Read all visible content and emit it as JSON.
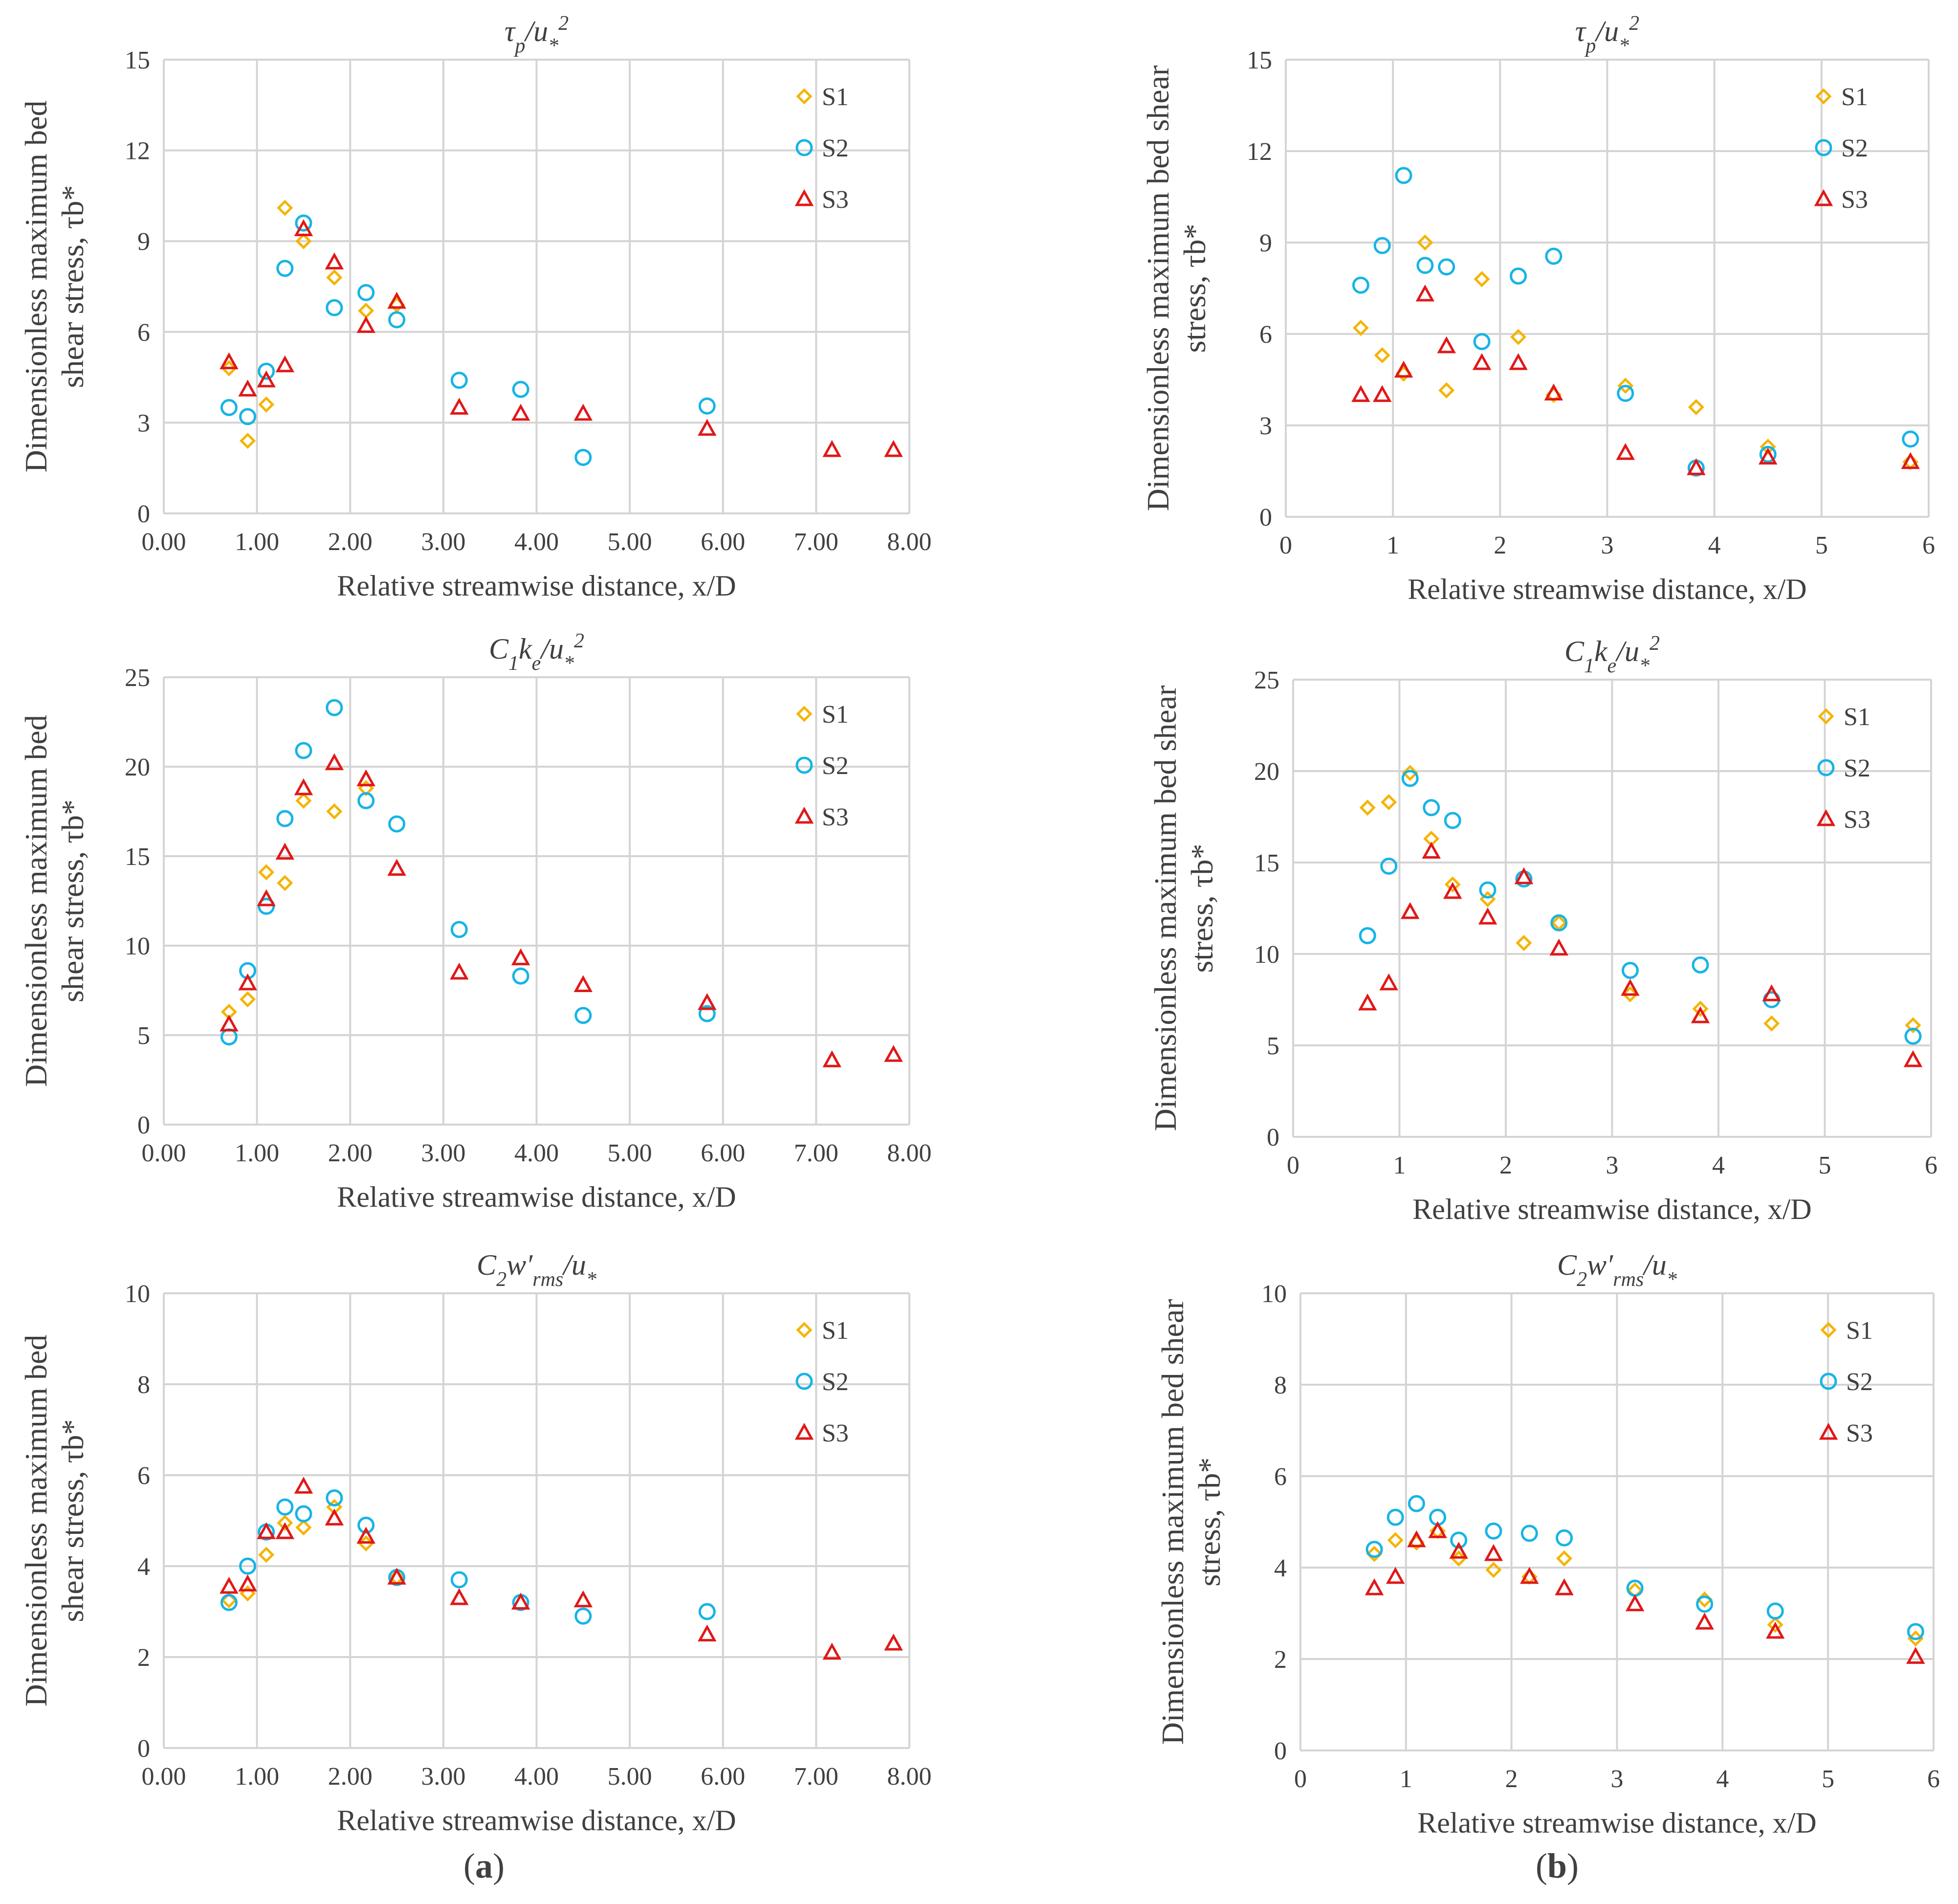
{
  "figure": {
    "panel_labels": [
      {
        "open": "(",
        "letter": "a",
        "close": ")"
      },
      {
        "open": "(",
        "letter": "b",
        "close": ")"
      }
    ],
    "series_names": [
      "S1",
      "S2",
      "S3"
    ],
    "colors": {
      "S1": "#f5b400",
      "S2": "#16b4e6",
      "S3": "#e01818",
      "grid": "#d4d4d4",
      "text": "#404040"
    }
  },
  "chart_data": [
    {
      "type": "scatter",
      "id": "a-top",
      "column": "a",
      "title": "τp/u*²",
      "ylabel_lines": [
        "Dimensionless maximum bed",
        "shear stress, τb*"
      ],
      "xlabel": "Relative streamwise distance, x/D",
      "xlim": [
        0,
        8
      ],
      "ylim": [
        0,
        15
      ],
      "xticks": [
        "0.00",
        "1.00",
        "2.00",
        "3.00",
        "4.00",
        "5.00",
        "6.00",
        "7.00",
        "8.00"
      ],
      "yticks": [
        "0",
        "3",
        "6",
        "9",
        "12",
        "15"
      ],
      "series": [
        {
          "name": "S1",
          "x": [
            0.7,
            0.9,
            1.1,
            1.3,
            1.5,
            1.83,
            2.17,
            2.5
          ],
          "y": [
            4.8,
            2.4,
            3.6,
            10.1,
            9.0,
            7.8,
            6.7,
            6.9
          ]
        },
        {
          "name": "S2",
          "x": [
            0.7,
            0.9,
            1.1,
            1.3,
            1.5,
            1.83,
            2.17,
            2.5,
            3.17,
            3.83,
            4.5,
            5.83
          ],
          "y": [
            3.5,
            3.2,
            4.7,
            8.1,
            9.6,
            6.8,
            7.3,
            6.4,
            4.4,
            4.1,
            1.85,
            3.55
          ]
        },
        {
          "name": "S3",
          "x": [
            0.7,
            0.9,
            1.1,
            1.3,
            1.5,
            1.83,
            2.17,
            2.5,
            3.17,
            3.83,
            4.5,
            5.83,
            7.17,
            7.83
          ],
          "y": [
            5.0,
            4.1,
            4.4,
            4.9,
            9.4,
            8.3,
            6.2,
            7.0,
            3.5,
            3.3,
            3.3,
            2.8,
            2.1,
            2.1
          ]
        }
      ]
    },
    {
      "type": "scatter",
      "id": "b-top",
      "column": "b",
      "title": "τp/u*²",
      "ylabel_lines": [
        "Dimensionless maximum bed shear",
        "stress, τb*"
      ],
      "xlabel": "Relative streamwise distance, x/D",
      "xlim": [
        0,
        6
      ],
      "ylim": [
        0,
        15
      ],
      "xticks": [
        "0",
        "1",
        "2",
        "3",
        "4",
        "5",
        "6"
      ],
      "yticks": [
        "0",
        "3",
        "6",
        "9",
        "12",
        "15"
      ],
      "series": [
        {
          "name": "S1",
          "x": [
            0.7,
            0.9,
            1.1,
            1.3,
            1.5,
            1.83,
            2.17,
            2.5,
            3.17,
            3.83,
            4.5,
            5.83
          ],
          "y": [
            6.2,
            5.3,
            4.7,
            9.0,
            4.15,
            7.8,
            5.9,
            4.0,
            4.3,
            3.6,
            2.3,
            1.8
          ]
        },
        {
          "name": "S2",
          "x": [
            0.7,
            0.9,
            1.1,
            1.3,
            1.5,
            1.83,
            2.17,
            2.5,
            3.17,
            3.83,
            4.5,
            5.83
          ],
          "y": [
            7.6,
            8.9,
            11.2,
            8.25,
            8.2,
            5.75,
            7.9,
            8.55,
            4.05,
            1.6,
            2.05,
            2.55
          ]
        },
        {
          "name": "S3",
          "x": [
            0.7,
            0.9,
            1.1,
            1.3,
            1.5,
            1.83,
            2.17,
            2.5,
            3.17,
            3.83,
            4.5,
            5.83
          ],
          "y": [
            4.0,
            4.0,
            4.8,
            7.3,
            5.6,
            5.05,
            5.05,
            4.05,
            2.1,
            1.6,
            1.95,
            1.8
          ]
        }
      ]
    },
    {
      "type": "scatter",
      "id": "a-mid",
      "column": "a",
      "title": "C1ke/u*²",
      "ylabel_lines": [
        "Dimensionless maximum bed",
        "shear stress, τb*"
      ],
      "xlabel": "Relative streamwise distance, x/D",
      "xlim": [
        0,
        8
      ],
      "ylim": [
        0,
        25
      ],
      "xticks": [
        "0.00",
        "1.00",
        "2.00",
        "3.00",
        "4.00",
        "5.00",
        "6.00",
        "7.00",
        "8.00"
      ],
      "yticks": [
        "0",
        "5",
        "10",
        "15",
        "20",
        "25"
      ],
      "series": [
        {
          "name": "S1",
          "x": [
            0.7,
            0.9,
            1.1,
            1.3,
            1.5,
            1.83,
            2.17
          ],
          "y": [
            6.3,
            7.0,
            14.1,
            13.5,
            18.1,
            17.5,
            18.8
          ]
        },
        {
          "name": "S2",
          "x": [
            0.7,
            0.9,
            1.1,
            1.3,
            1.5,
            1.83,
            2.17,
            2.5,
            3.17,
            3.83,
            4.5,
            5.83
          ],
          "y": [
            4.9,
            8.6,
            12.2,
            17.1,
            20.9,
            23.3,
            18.1,
            16.8,
            10.9,
            8.3,
            6.1,
            6.2
          ]
        },
        {
          "name": "S3",
          "x": [
            0.7,
            0.9,
            1.1,
            1.3,
            1.5,
            1.83,
            2.17,
            2.5,
            3.17,
            3.83,
            4.5,
            5.83,
            7.17,
            7.83
          ],
          "y": [
            5.6,
            7.9,
            12.6,
            15.2,
            18.8,
            20.2,
            19.3,
            14.3,
            8.5,
            9.3,
            7.8,
            6.8,
            3.6,
            3.9
          ]
        }
      ]
    },
    {
      "type": "scatter",
      "id": "b-mid",
      "column": "b",
      "title": "C1ke/u*²",
      "ylabel_lines": [
        "Dimensionless maximum bed shear",
        "stress, τb*"
      ],
      "xlabel": "Relative streamwise distance, x/D",
      "xlim": [
        0,
        6
      ],
      "ylim": [
        0,
        25
      ],
      "xticks": [
        "0",
        "1",
        "2",
        "3",
        "4",
        "5",
        "6"
      ],
      "yticks": [
        "0",
        "5",
        "10",
        "15",
        "20",
        "25"
      ],
      "series": [
        {
          "name": "S1",
          "x": [
            0.7,
            0.9,
            1.1,
            1.3,
            1.5,
            1.83,
            2.17,
            2.5,
            3.17,
            3.83,
            4.5,
            5.83
          ],
          "y": [
            18.0,
            18.3,
            19.9,
            16.3,
            13.8,
            13.0,
            10.6,
            11.7,
            7.8,
            7.0,
            6.2,
            6.1
          ]
        },
        {
          "name": "S2",
          "x": [
            0.7,
            0.9,
            1.1,
            1.3,
            1.5,
            1.83,
            2.17,
            2.5,
            3.17,
            3.83,
            4.5,
            5.83
          ],
          "y": [
            11.0,
            14.8,
            19.6,
            18.0,
            17.3,
            13.5,
            14.1,
            11.7,
            9.1,
            9.4,
            7.5,
            5.5
          ]
        },
        {
          "name": "S3",
          "x": [
            0.7,
            0.9,
            1.1,
            1.3,
            1.5,
            1.83,
            2.17,
            2.5,
            3.17,
            3.83,
            4.5,
            5.83
          ],
          "y": [
            7.3,
            8.4,
            12.3,
            15.6,
            13.4,
            12.0,
            14.2,
            10.3,
            8.1,
            6.6,
            7.8,
            4.2
          ]
        }
      ]
    },
    {
      "type": "scatter",
      "id": "a-bot",
      "column": "a",
      "title": "C2w′rms/u*",
      "ylabel_lines": [
        "Dimensionless maximum bed",
        "shear stress, τb*"
      ],
      "xlabel": "Relative streamwise distance, x/D",
      "xlim": [
        0,
        8
      ],
      "ylim": [
        0,
        10
      ],
      "xticks": [
        "0.00",
        "1.00",
        "2.00",
        "3.00",
        "4.00",
        "5.00",
        "6.00",
        "7.00",
        "8.00"
      ],
      "yticks": [
        "0",
        "2",
        "4",
        "6",
        "8",
        "10"
      ],
      "series": [
        {
          "name": "S1",
          "x": [
            0.7,
            0.9,
            1.1,
            1.3,
            1.5,
            1.83,
            2.17,
            2.5
          ],
          "y": [
            3.25,
            3.4,
            4.25,
            4.95,
            4.85,
            5.3,
            4.5,
            3.75
          ]
        },
        {
          "name": "S2",
          "x": [
            0.7,
            0.9,
            1.1,
            1.3,
            1.5,
            1.83,
            2.17,
            2.5,
            3.17,
            3.83,
            4.5,
            5.83
          ],
          "y": [
            3.2,
            4.0,
            4.75,
            5.3,
            5.15,
            5.5,
            4.9,
            3.75,
            3.7,
            3.2,
            2.9,
            3.0
          ]
        },
        {
          "name": "S3",
          "x": [
            0.7,
            0.9,
            1.1,
            1.3,
            1.5,
            1.83,
            2.17,
            2.5,
            3.17,
            3.83,
            4.5,
            5.83,
            7.17,
            7.83
          ],
          "y": [
            3.55,
            3.6,
            4.75,
            4.75,
            5.75,
            5.05,
            4.65,
            3.75,
            3.3,
            3.2,
            3.25,
            2.5,
            2.1,
            2.3
          ]
        }
      ]
    },
    {
      "type": "scatter",
      "id": "b-bot",
      "column": "b",
      "title": "C2w′rms/u*",
      "ylabel_lines": [
        "Dimensionless maximum bed shear",
        "stress, τb*"
      ],
      "xlabel": "Relative streamwise distance, x/D",
      "xlim": [
        0,
        6
      ],
      "ylim": [
        0,
        10
      ],
      "xticks": [
        "0",
        "1",
        "2",
        "3",
        "4",
        "5",
        "6"
      ],
      "yticks": [
        "0",
        "2",
        "4",
        "6",
        "8",
        "10"
      ],
      "series": [
        {
          "name": "S1",
          "x": [
            0.7,
            0.9,
            1.1,
            1.3,
            1.5,
            1.83,
            2.17,
            2.5,
            3.17,
            3.83,
            4.5,
            5.83
          ],
          "y": [
            4.3,
            4.6,
            4.55,
            4.8,
            4.2,
            3.95,
            3.8,
            4.2,
            3.5,
            3.3,
            2.75,
            2.45
          ]
        },
        {
          "name": "S2",
          "x": [
            0.7,
            0.9,
            1.1,
            1.3,
            1.5,
            1.83,
            2.17,
            2.5,
            3.17,
            3.83,
            4.5,
            5.83
          ],
          "y": [
            4.4,
            5.1,
            5.4,
            5.1,
            4.6,
            4.8,
            4.75,
            4.65,
            3.55,
            3.2,
            3.05,
            2.6
          ]
        },
        {
          "name": "S3",
          "x": [
            0.7,
            0.9,
            1.1,
            1.3,
            1.5,
            1.83,
            2.17,
            2.5,
            3.17,
            3.83,
            4.5,
            5.83
          ],
          "y": [
            3.55,
            3.8,
            4.6,
            4.8,
            4.35,
            4.3,
            3.8,
            3.55,
            3.2,
            2.8,
            2.6,
            2.05
          ]
        }
      ]
    }
  ]
}
